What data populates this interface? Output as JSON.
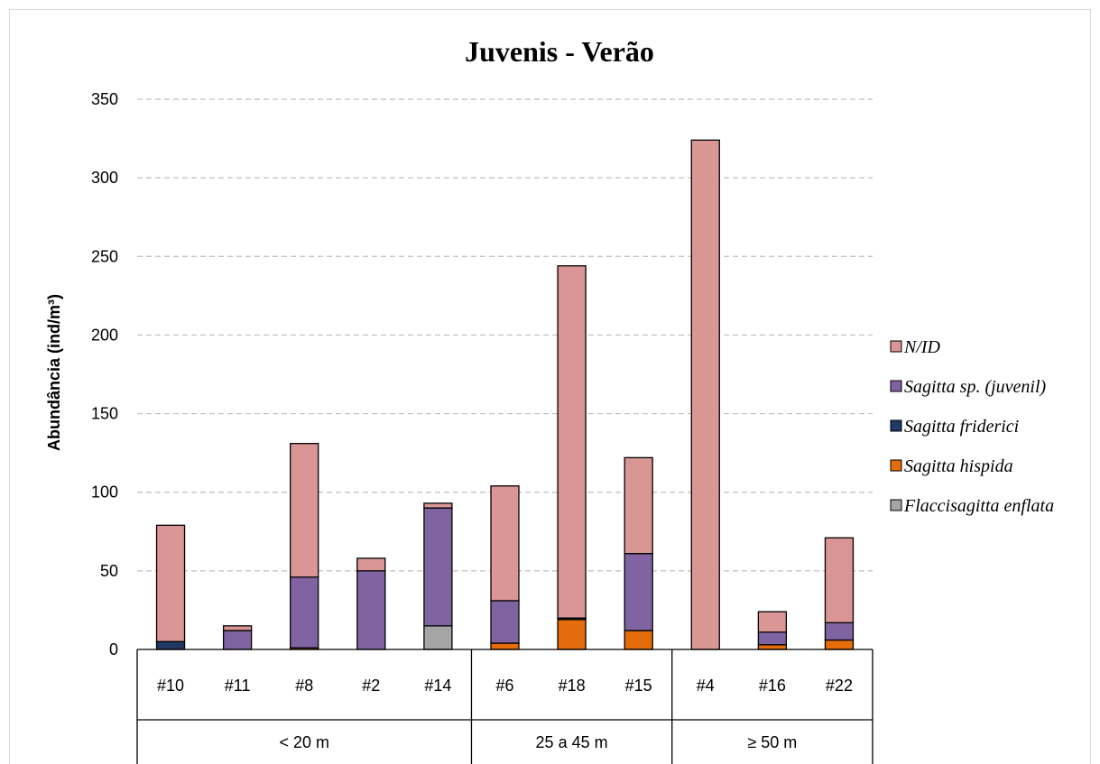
{
  "chart_data": {
    "type": "bar",
    "stacked": true,
    "title": "Juvenis - Verão",
    "ylabel": "Abundância (ind/m³)",
    "xlabel": "",
    "ylim": [
      0,
      350
    ],
    "yticks": [
      0,
      50,
      100,
      150,
      200,
      250,
      300,
      350
    ],
    "grid": true,
    "legend_position": "right",
    "categories": [
      "#10",
      "#11",
      "#8",
      "#2",
      "#14",
      "#6",
      "#18",
      "#15",
      "#4",
      "#16",
      "#22"
    ],
    "groups": [
      {
        "label": "< 20 m",
        "categories": [
          "#10",
          "#11",
          "#8",
          "#2",
          "#14"
        ]
      },
      {
        "label": "25 a 45 m",
        "categories": [
          "#6",
          "#18",
          "#15"
        ]
      },
      {
        "label": "≥ 50 m",
        "categories": [
          "#4",
          "#16",
          "#22"
        ]
      }
    ],
    "series": [
      {
        "name": "Flaccisagitta enflata",
        "color": "#a5a5a5",
        "values": [
          0,
          0,
          0,
          0,
          15,
          0,
          0,
          0,
          0,
          0,
          0
        ]
      },
      {
        "name": "Sagitta hispida",
        "color": "#e46c0a",
        "values": [
          0,
          0,
          1,
          0,
          0,
          4,
          19,
          12,
          0,
          3,
          6
        ]
      },
      {
        "name": "Sagitta friderici",
        "color": "#1f3864",
        "values": [
          5,
          0,
          0,
          0,
          0,
          0,
          1,
          0,
          0,
          0,
          0
        ]
      },
      {
        "name": "Sagitta sp. (juvenil)",
        "color": "#8064a2",
        "values": [
          0,
          12,
          45,
          50,
          75,
          27,
          0,
          49,
          0,
          8,
          11
        ]
      },
      {
        "name": "N/ID",
        "color": "#d99694",
        "values": [
          74,
          3,
          85,
          8,
          3,
          73,
          224,
          61,
          324,
          13,
          54
        ]
      }
    ]
  }
}
